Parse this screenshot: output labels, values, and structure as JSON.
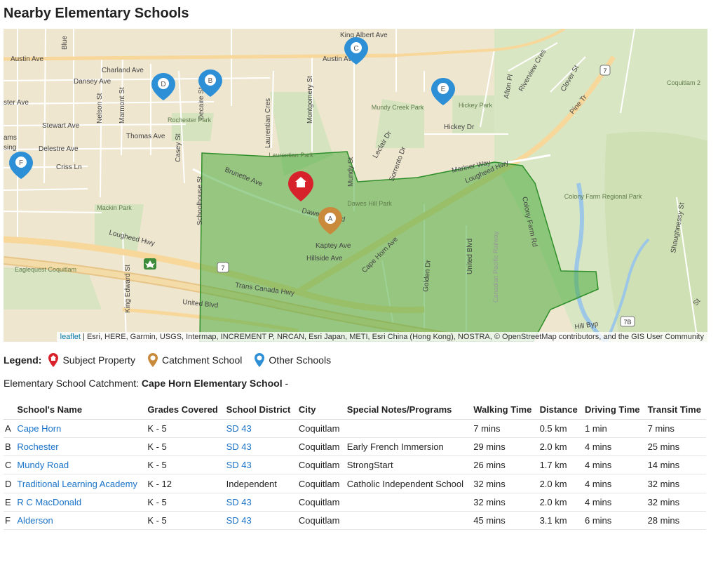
{
  "title": "Nearby Elementary Schools",
  "map": {
    "street_labels": {
      "austin_w": "Austin Ave",
      "austin_e": "Austin Ave",
      "king_albert": "King Albert Ave",
      "charland": "Charland Ave",
      "dansey": "Dansey Ave",
      "stewart": "Stewart Ave",
      "thomas": "Thomas Ave",
      "delestre": "Delestre Ave",
      "criss": "Criss Ln",
      "brunette": "Brunette Ave",
      "dawes": "Dawes Hill Rd",
      "kaptey": "Kaptey Ave",
      "hillside": "Hillside Ave",
      "lougheed_w": "Lougheed Hwy",
      "lougheed_e": "Lougheed Hwy",
      "trans_canada": "Trans Canada Hwy",
      "united": "United Blvd",
      "united_v": "United Blvd",
      "mariner": "Mariner Way",
      "hickey": "Hickey Dr",
      "colony_rd": "Colony Farm Rd",
      "pine": "Pine Tr",
      "blue": "Blue",
      "ster": "ster Ave",
      "nelson": "Nelson St",
      "marmont": "Marmont St",
      "decaire": "Decaire St",
      "casey": "Casey St",
      "schoolhouse": "Schoolhouse St",
      "laurentian": "Laurentian Cres",
      "montgomery": "Montgomery St",
      "mundy_st": "Mundy St",
      "leclair": "Leclair Dr",
      "sorrento": "Sorrento Dr",
      "cape_horn_ave": "Cape Horn Ave",
      "golden": "Golden Dr",
      "king_edward": "King Edward St",
      "mackin": "Mackin Park",
      "eaglequest": "Eaglequest Coquitlam",
      "rochester_park": "Rochester Park",
      "laurentian_park": "Laurentian Park",
      "mundy_creek": "Mundy Creek Park",
      "hickey_park": "Hickey Park",
      "dawes_park": "Dawes Hill Park",
      "colony_farm_park": "Colony Farm Regional Park",
      "coquitlam2": "Coquitlam 2",
      "clover": "Clover St",
      "riverview": "Riverview Cres",
      "afton": "Afton Pl",
      "shaughnessy": "Shaughnessy St",
      "cpr": "Canadian Pacific Railway",
      "hill_byp": "Hill Byp",
      "route_7": "7",
      "route_7b": "7B",
      "ams": "ams",
      "sing": "sing",
      "st_label": "St"
    },
    "pins": {
      "a": "A",
      "b": "B",
      "c": "C",
      "d": "D",
      "e": "E",
      "f": "F"
    },
    "attribution_link": "leaflet",
    "attribution_text": " | Esri, HERE, Garmin, USGS, Intermap, INCREMENT P, NRCAN, Esri Japan, METI, Esri China (Hong Kong), NOSTRA, © OpenStreetMap contributors, and the GIS User Community",
    "colors": {
      "subject": "#d7222b",
      "catchment": "#c98a3c",
      "other": "#2d8fd5",
      "catchment_area": "#4cab3f"
    }
  },
  "legend": {
    "label": "Legend:",
    "subject": "Subject Property",
    "catchment": "Catchment School",
    "other": "Other Schools"
  },
  "catchment": {
    "prefix": "Elementary School Catchment: ",
    "school": "Cape Horn Elementary School",
    "suffix": " -"
  },
  "table": {
    "headers": [
      "School's Name",
      "Grades Covered",
      "School District",
      "City",
      "Special Notes/Programs",
      "Walking Time",
      "Distance",
      "Driving Time",
      "Transit Time"
    ],
    "rows": [
      {
        "letter": "A",
        "name": "Cape Horn",
        "grades": "K - 5",
        "district": "SD 43",
        "city": "Coquitlam",
        "notes": "",
        "walk": "7 mins",
        "distance": "0.5 km",
        "drive": "1 min",
        "transit": "7 mins"
      },
      {
        "letter": "B",
        "name": "Rochester",
        "grades": "K - 5",
        "district": "SD 43",
        "city": "Coquitlam",
        "notes": "Early French Immersion",
        "walk": "29 mins",
        "distance": "2.0 km",
        "drive": "4 mins",
        "transit": "25 mins"
      },
      {
        "letter": "C",
        "name": "Mundy Road",
        "grades": "K - 5",
        "district": "SD 43",
        "city": "Coquitlam",
        "notes": "StrongStart",
        "walk": "26 mins",
        "distance": "1.7 km",
        "drive": "4 mins",
        "transit": "14 mins"
      },
      {
        "letter": "D",
        "name": "Traditional Learning Academy",
        "grades": "K - 12",
        "district": "Independent",
        "city": "Coquitlam",
        "notes": "Catholic Independent School",
        "walk": "32 mins",
        "distance": "2.0 km",
        "drive": "4 mins",
        "transit": "32 mins"
      },
      {
        "letter": "E",
        "name": "R C MacDonald",
        "grades": "K - 5",
        "district": "SD 43",
        "city": "Coquitlam",
        "notes": "",
        "walk": "32 mins",
        "distance": "2.0 km",
        "drive": "4 mins",
        "transit": "32 mins"
      },
      {
        "letter": "F",
        "name": "Alderson",
        "grades": "K - 5",
        "district": "SD 43",
        "city": "Coquitlam",
        "notes": "",
        "walk": "45 mins",
        "distance": "3.1 km",
        "drive": "6 mins",
        "transit": "28 mins"
      }
    ]
  }
}
